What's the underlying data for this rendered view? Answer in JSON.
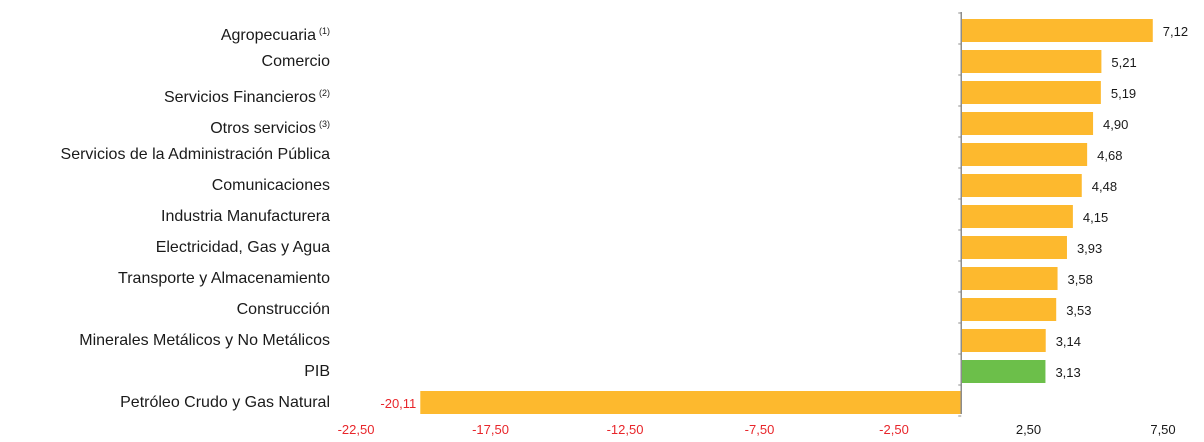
{
  "chart_data": {
    "type": "bar",
    "orientation": "horizontal",
    "title": "",
    "xlabel": "",
    "ylabel": "",
    "categories": [
      {
        "name": "Agropecuaria",
        "note": "(1)"
      },
      {
        "name": "Comercio",
        "note": ""
      },
      {
        "name": "Servicios Financieros",
        "note": "(2)"
      },
      {
        "name": "Otros servicios",
        "note": "(3)"
      },
      {
        "name": "Servicios de la Administración Pública",
        "note": ""
      },
      {
        "name": "Comunicaciones",
        "note": ""
      },
      {
        "name": "Industria Manufacturera",
        "note": ""
      },
      {
        "name": "Electricidad, Gas y Agua",
        "note": ""
      },
      {
        "name": "Transporte y Almacenamiento",
        "note": ""
      },
      {
        "name": "Construcción",
        "note": ""
      },
      {
        "name": "Minerales Metálicos y No Metálicos",
        "note": ""
      },
      {
        "name": "PIB",
        "note": ""
      },
      {
        "name": "Petróleo Crudo y Gas Natural",
        "note": ""
      }
    ],
    "values": [
      7.12,
      5.21,
      5.19,
      4.9,
      4.68,
      4.48,
      4.15,
      3.93,
      3.58,
      3.53,
      3.14,
      3.13,
      -20.11
    ],
    "value_labels": [
      "7,12",
      "5,21",
      "5,19",
      "4,90",
      "4,68",
      "4,48",
      "4,15",
      "3,93",
      "3,58",
      "3,53",
      "3,14",
      "3,13",
      "-20,11"
    ],
    "highlight_category": "PIB",
    "xlim": [
      -22.5,
      7.5
    ],
    "xticks": [
      -22.5,
      -17.5,
      -12.5,
      -7.5,
      -2.5,
      2.5,
      7.5
    ],
    "xtick_labels": [
      "-22,50",
      "-17,50",
      "-12,50",
      "-7,50",
      "-2,50",
      "2,50",
      "7,50"
    ],
    "grid": false,
    "legend": "none",
    "colors": {
      "bar": "#FDB92E",
      "highlight": "#6CBF4A",
      "axis": "#8c8c8c",
      "negative_text": "#E8262B",
      "positive_text": "#1a1a1a"
    }
  }
}
